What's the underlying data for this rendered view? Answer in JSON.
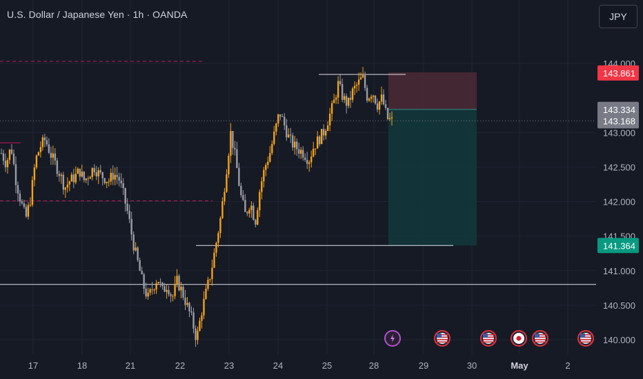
{
  "header": {
    "title": "U.S. Dollar / Japanese Yen · 1h · OANDA",
    "currency_button": "JPY"
  },
  "colors": {
    "background": "#161a25",
    "grid": "#212533",
    "candle_up": "#f7a21b",
    "candle_down": "#9b9ea6",
    "stop_zone": "#4b2a35",
    "target_zone": "#123a3c",
    "stop_tag": "#f23645",
    "target_tag": "#089981",
    "current_tag": "#787b86",
    "dashed_level": "#c2185b",
    "solid_level": "#e0e3eb"
  },
  "chart_data": {
    "type": "candlestick",
    "title": "U.S. Dollar / Japanese Yen · 1h · OANDA",
    "y_ticks": [
      "144.000",
      "143.000",
      "142.500",
      "142.000",
      "141.500",
      "141.000",
      "140.500",
      "140.000"
    ],
    "ylim": [
      139.9,
      144.3
    ],
    "x_ticks": [
      {
        "label": "17",
        "bold": false
      },
      {
        "label": "18",
        "bold": false
      },
      {
        "label": "21",
        "bold": false
      },
      {
        "label": "22",
        "bold": false
      },
      {
        "label": "23",
        "bold": false
      },
      {
        "label": "24",
        "bold": false
      },
      {
        "label": "25",
        "bold": false
      },
      {
        "label": "28",
        "bold": false
      },
      {
        "label": "29",
        "bold": false
      },
      {
        "label": "30",
        "bold": false
      },
      {
        "label": "May",
        "bold": true
      },
      {
        "label": "2",
        "bold": false
      }
    ],
    "price_path": [
      142.7,
      142.55,
      142.8,
      142.3,
      142.0,
      141.75,
      142.05,
      142.6,
      142.8,
      142.9,
      142.7,
      142.55,
      142.4,
      142.2,
      142.3,
      142.35,
      142.45,
      142.3,
      142.4,
      142.5,
      142.4,
      142.35,
      142.3,
      142.4,
      142.35,
      142.1,
      141.8,
      141.4,
      141.1,
      140.8,
      140.6,
      140.75,
      140.9,
      140.7,
      140.8,
      140.6,
      140.85,
      140.7,
      140.5,
      140.3,
      140.0,
      140.4,
      140.7,
      141.0,
      141.4,
      141.8,
      142.4,
      143.0,
      142.6,
      142.1,
      141.8,
      142.0,
      141.7,
      142.2,
      142.5,
      142.7,
      143.0,
      143.3,
      143.1,
      142.9,
      142.8,
      142.75,
      142.7,
      142.6,
      142.8,
      142.9,
      143.0,
      143.2,
      143.4,
      143.7,
      143.5,
      143.4,
      143.6,
      143.7,
      143.8,
      143.5,
      143.6,
      143.4,
      143.5,
      143.2,
      143.168
    ],
    "levels": {
      "stop_loss": 143.861,
      "entry": 143.334,
      "current": 143.168,
      "take_profit": 141.364
    },
    "price_tags": {
      "stop_loss": "143.861",
      "entry": "143.334",
      "current": "143.168",
      "take_profit": "141.364"
    },
    "horizontal_lines": [
      {
        "style": "dashed",
        "price": 144.03
      },
      {
        "style": "dashed",
        "price": 142.01
      },
      {
        "style": "solid",
        "price": 140.8
      },
      {
        "style": "solid",
        "price": 141.364
      },
      {
        "style": "solid",
        "price": 143.84
      }
    ],
    "events": [
      {
        "icon": "lightning-icon"
      },
      {
        "icon": "us-flag-icon"
      },
      {
        "icon": "us-flag-icon"
      },
      {
        "icon": "japan-flag-icon"
      },
      {
        "icon": "us-flag-icon"
      },
      {
        "icon": "us-flag-icon"
      }
    ]
  }
}
